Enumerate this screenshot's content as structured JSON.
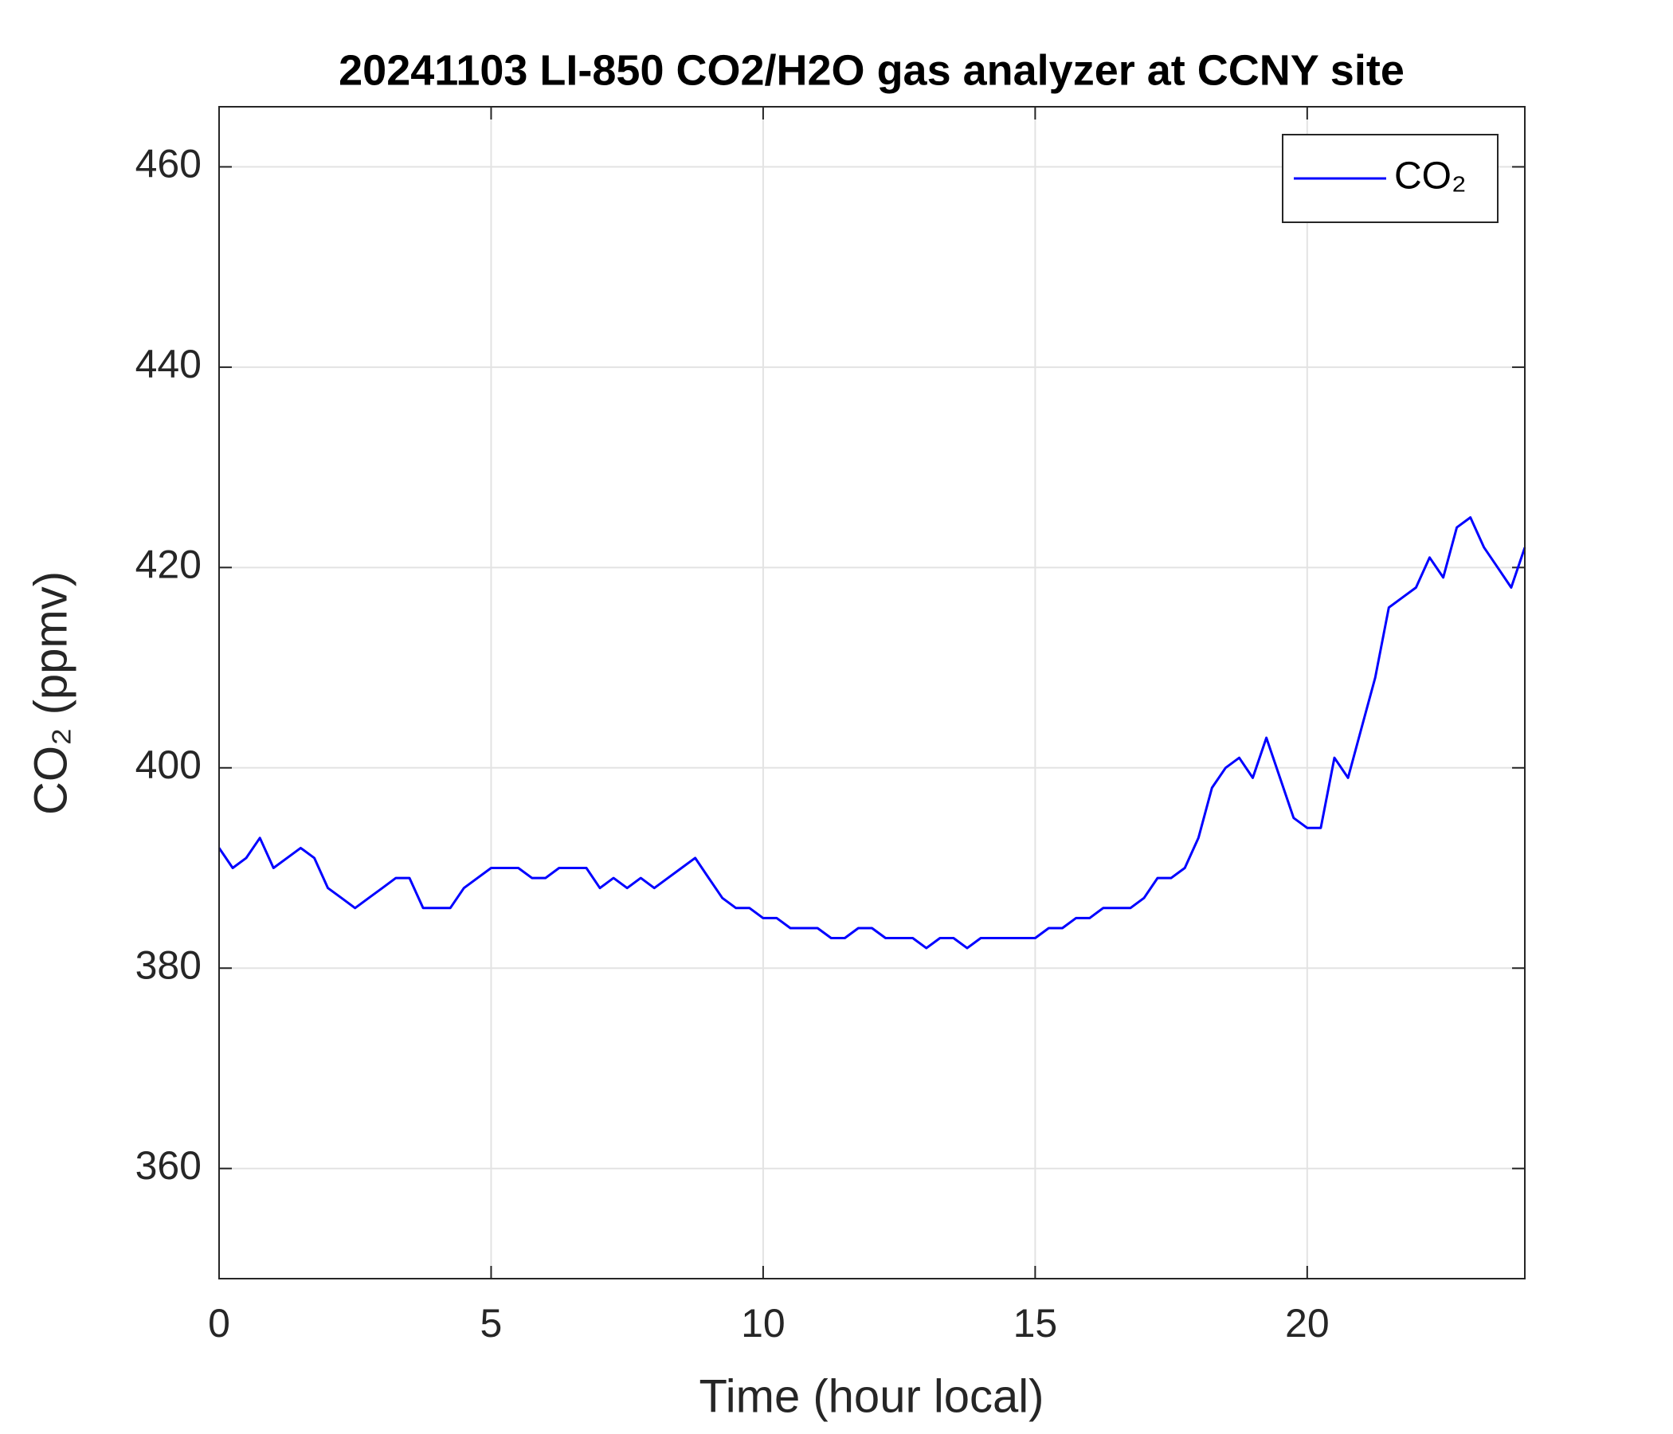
{
  "chart_data": {
    "type": "line",
    "title": "20241103 LI-850 CO2/H2O gas analyzer at CCNY site",
    "xlabel": "Time (hour local)",
    "ylabel": "CO₂ (ppmv)",
    "x": [
      0,
      0.25,
      0.5,
      0.75,
      1,
      1.25,
      1.5,
      1.75,
      2,
      2.25,
      2.5,
      2.75,
      3,
      3.25,
      3.5,
      3.75,
      4,
      4.25,
      4.5,
      4.75,
      5,
      5.25,
      5.5,
      5.75,
      6,
      6.25,
      6.5,
      6.75,
      7,
      7.25,
      7.5,
      7.75,
      8,
      8.25,
      8.5,
      8.75,
      9,
      9.25,
      9.5,
      9.75,
      10,
      10.25,
      10.5,
      10.75,
      11,
      11.25,
      11.5,
      11.75,
      12,
      12.25,
      12.5,
      12.75,
      13,
      13.25,
      13.5,
      13.75,
      14,
      14.25,
      14.5,
      14.75,
      15,
      15.25,
      15.5,
      15.75,
      16,
      16.25,
      16.5,
      16.75,
      17,
      17.25,
      17.5,
      17.75,
      18,
      18.25,
      18.5,
      18.75,
      19,
      19.25,
      19.5,
      19.75,
      20,
      20.25,
      20.5,
      20.75,
      21,
      21.25,
      21.5,
      21.75,
      22,
      22.25,
      22.5,
      22.75,
      23,
      23.25,
      23.5,
      23.75,
      24
    ],
    "series": [
      {
        "name": "CO₂",
        "color": "#0000ff",
        "values": [
          392,
          390,
          391,
          393,
          390,
          391,
          392,
          391,
          388,
          387,
          386,
          387,
          388,
          389,
          389,
          386,
          386,
          386,
          388,
          389,
          390,
          390,
          390,
          389,
          389,
          390,
          390,
          390,
          388,
          389,
          388,
          389,
          388,
          389,
          390,
          391,
          389,
          387,
          386,
          386,
          385,
          385,
          384,
          384,
          384,
          383,
          383,
          384,
          384,
          383,
          383,
          383,
          382,
          383,
          383,
          382,
          383,
          383,
          383,
          383,
          383,
          384,
          384,
          385,
          385,
          386,
          386,
          386,
          387,
          389,
          389,
          390,
          393,
          398,
          400,
          401,
          399,
          403,
          399,
          395,
          394,
          394,
          401,
          399,
          404,
          409,
          416,
          417,
          418,
          421,
          419,
          424,
          425,
          422,
          420,
          418,
          422
        ]
      }
    ],
    "xlim": [
      0,
      24
    ],
    "xticks": [
      0,
      5,
      10,
      15,
      20
    ],
    "ylim": [
      349,
      466
    ],
    "yticks": [
      360,
      380,
      400,
      420,
      440,
      460
    ],
    "grid": true,
    "legend": "upper right"
  }
}
